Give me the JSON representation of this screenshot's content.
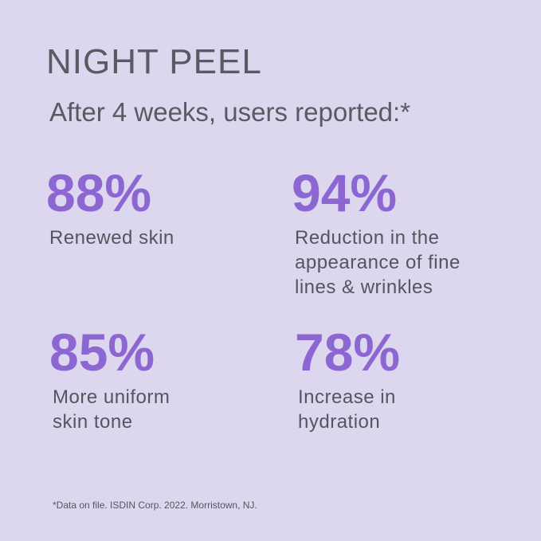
{
  "header": {
    "title": "NIGHT PEEL",
    "subtitle": "After 4 weeks, users reported:*"
  },
  "stats": [
    {
      "value": "88%",
      "label": [
        "Renewed skin"
      ]
    },
    {
      "value": "94%",
      "label": [
        "Reduction in the",
        "appearance of fine",
        "lines & wrinkles"
      ]
    },
    {
      "value": "85%",
      "label": [
        "More uniform",
        "skin tone"
      ]
    },
    {
      "value": "78%",
      "label": [
        "Increase in",
        "hydration"
      ]
    }
  ],
  "footnote": "*Data on file. ISDIN Corp. 2022. Morristown, NJ."
}
